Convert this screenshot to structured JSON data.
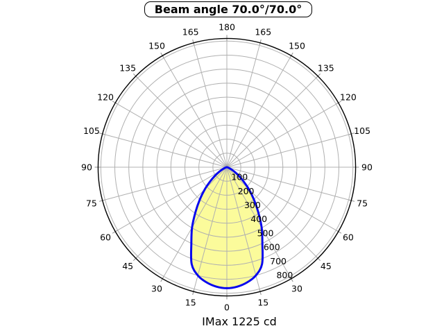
{
  "header": {
    "title": "Beam angle 70.0°/70.0°"
  },
  "footer": {
    "imax_label": "IMax 1225 cd"
  },
  "chart_data": {
    "type": "polar",
    "subtype": "luminous-intensity-distribution",
    "title": "Beam angle 70.0°/70.0°",
    "footer_label": "IMax 1225 cd",
    "beam_angle_deg": [
      70.0,
      70.0
    ],
    "imax_cd": 1225,
    "unit": "cd",
    "rmax": 900,
    "radial_rings": [
      100,
      200,
      300,
      400,
      500,
      600,
      700,
      800,
      900
    ],
    "radial_ring_labels": [
      "100",
      "200",
      "300",
      "400",
      "500",
      "600",
      "700",
      "800"
    ],
    "angle_tick_step_deg": 15,
    "angle_labels_deg": [
      0,
      15,
      30,
      45,
      60,
      75,
      90,
      105,
      120,
      135,
      150,
      165,
      180
    ],
    "grid": true,
    "legend": "none",
    "curve": {
      "symmetric": true,
      "angles_deg": [
        0,
        5,
        10,
        15,
        20,
        25,
        30,
        35,
        40,
        45,
        50,
        55,
        60,
        65,
        70,
        75,
        80,
        85,
        90
      ],
      "intensity_cd": [
        864,
        856,
        835,
        800,
        735,
        600,
        497,
        390,
        300,
        222,
        152,
        97,
        57,
        31,
        15,
        6,
        2,
        1,
        0
      ]
    },
    "colors": {
      "curve": "#0808ee",
      "fill": "#fbfb9b",
      "grid": "#b0b0b0",
      "tick": "#8c8c8c",
      "outer": "#000000",
      "text": "#000000",
      "background": "#ffffff"
    }
  }
}
